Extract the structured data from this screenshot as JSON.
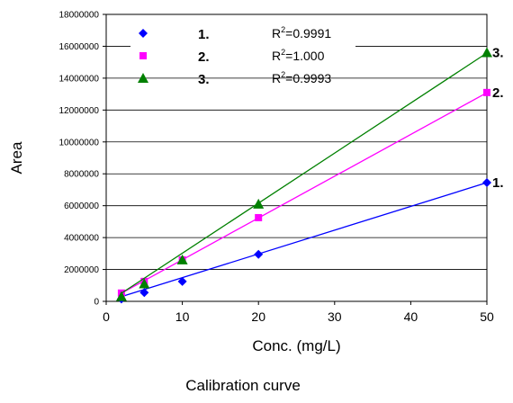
{
  "chart_data": {
    "type": "scatter",
    "title": "",
    "caption": "Calibration curve",
    "xlabel": "Conc. (mg/L)",
    "ylabel": "Area",
    "xlim": [
      0,
      50
    ],
    "ylim": [
      0,
      18000000
    ],
    "x_ticks": [
      "0",
      "10",
      "20",
      "30",
      "40",
      "50"
    ],
    "y_ticks": [
      "0",
      "2000000",
      "4000000",
      "6000000",
      "8000000",
      "10000000",
      "12000000",
      "14000000",
      "16000000",
      "18000000"
    ],
    "grid": "horizontal",
    "legend_position": "top-left",
    "series": [
      {
        "name": "1.",
        "r2": "=0.9991",
        "color": "#0000ff",
        "marker": "diamond",
        "x": [
          2,
          5,
          10,
          20,
          50
        ],
        "y": [
          150000,
          550000,
          1250000,
          2950000,
          7450000
        ],
        "fit": [
          -4000,
          149000
        ],
        "end_label": "1."
      },
      {
        "name": "2.",
        "r2": "=1.000",
        "color": "#ff00ff",
        "marker": "square",
        "x": [
          2,
          5,
          10,
          20,
          50
        ],
        "y": [
          520000,
          1250000,
          2600000,
          5250000,
          13100000
        ],
        "fit": [
          -10000,
          262000
        ],
        "end_label": "2."
      },
      {
        "name": "3.",
        "r2": "=0.9993",
        "color": "#008000",
        "marker": "triangle",
        "x": [
          2,
          5,
          10,
          20,
          50
        ],
        "y": [
          300000,
          1100000,
          2600000,
          6100000,
          15600000
        ],
        "fit": [
          -120000,
          314000
        ],
        "end_label": "3."
      }
    ]
  }
}
